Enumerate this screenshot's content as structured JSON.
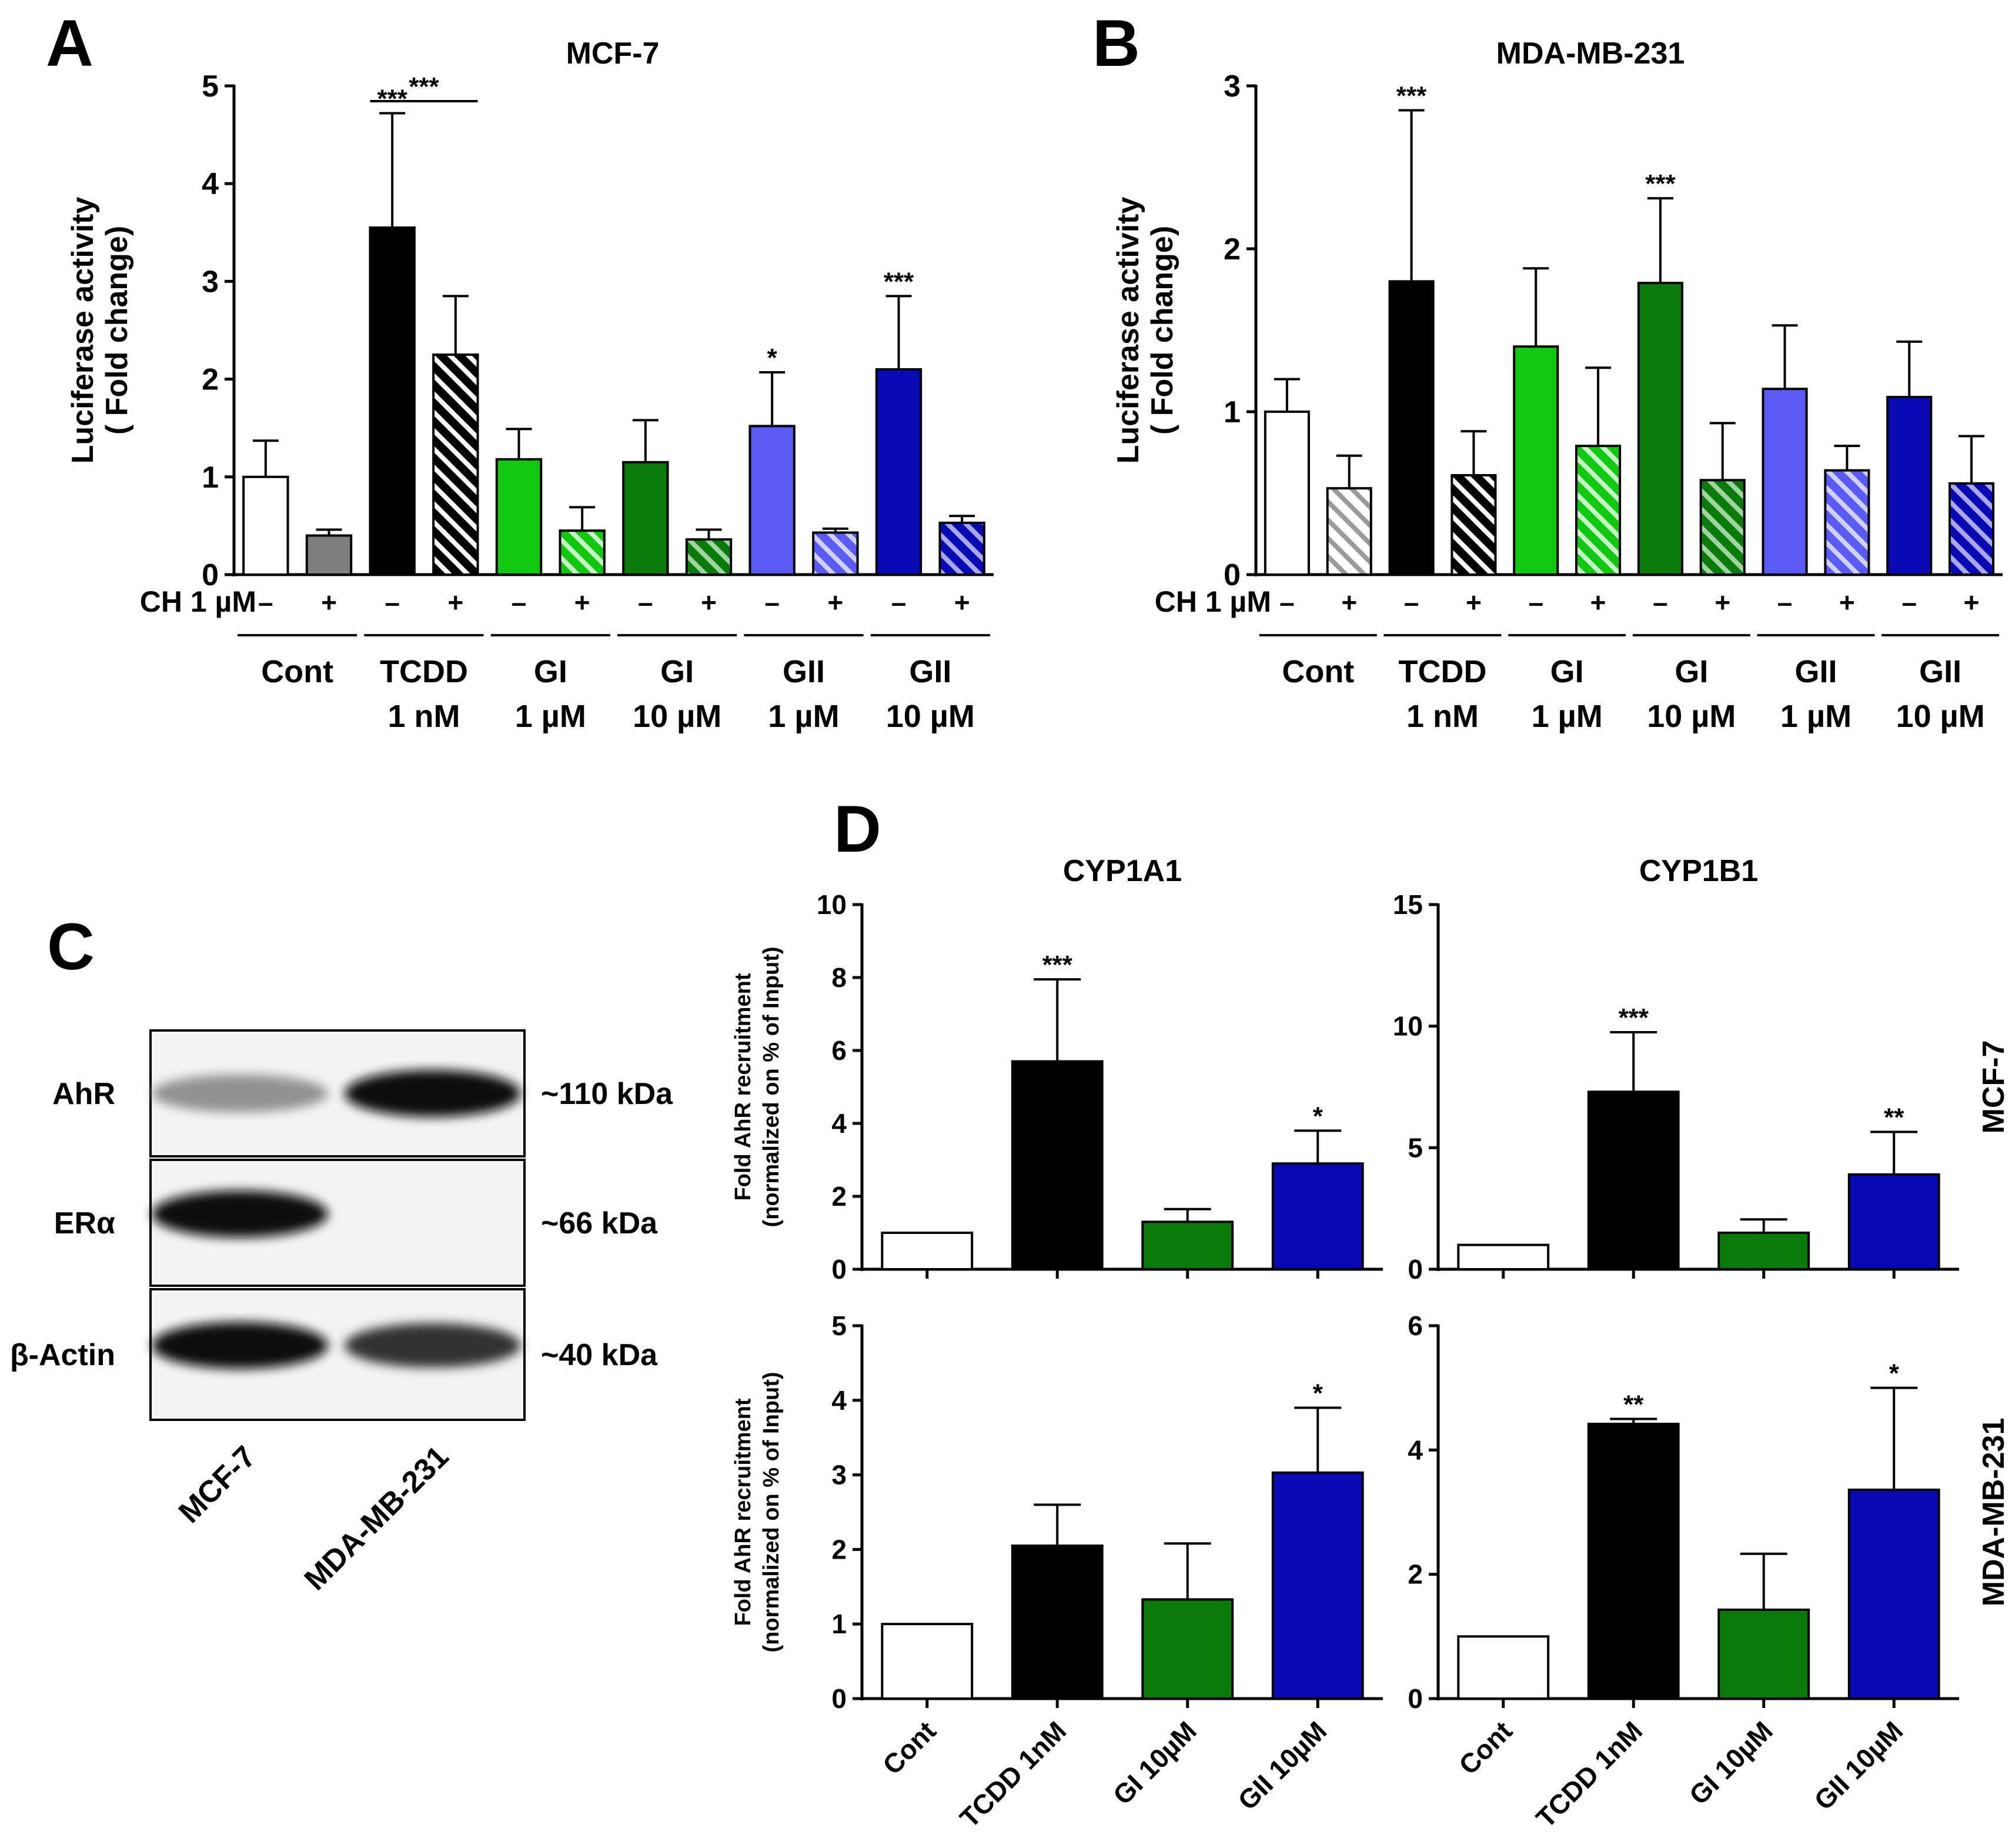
{
  "colors": {
    "white": "#ffffff",
    "gray": "#7f7f7f",
    "black": "#000000",
    "light_green": "#11c811",
    "dark_green": "#0a7a0a",
    "light_blue": "#5a5af5",
    "dark_blue": "#0a0ab4",
    "axis": "#000000"
  },
  "panels": {
    "A": {
      "letter": "A"
    },
    "B": {
      "letter": "B"
    },
    "C": {
      "letter": "C"
    },
    "D": {
      "letter": "D"
    }
  },
  "shared": {
    "reporter_ylabel_line1": "Luciferase activity",
    "reporter_ylabel_line2": "( Fold change)",
    "ch_label": "CH 1 µM",
    "minus": "–",
    "plus": "+",
    "chip_ylabel_line1": "Fold AhR recruitment",
    "chip_ylabel_line2": "(normalized on % of Input)"
  },
  "chart_data": [
    {
      "id": "A",
      "type": "bar",
      "title": "MCF-7",
      "ylabel": "Luciferase activity ( Fold change)",
      "ylim": [
        0,
        5
      ],
      "yticks": [
        "0",
        "1",
        "2",
        "3",
        "4",
        "5"
      ],
      "groups": [
        {
          "line1": "Cont",
          "line2": ""
        },
        {
          "line1": "TCDD",
          "line2": "1 nM"
        },
        {
          "line1": "GI",
          "line2": "1 µM"
        },
        {
          "line1": "GI",
          "line2": "10 µM"
        },
        {
          "line1": "GII",
          "line2": "1 µM"
        },
        {
          "line1": "GII",
          "line2": "10 µM"
        }
      ],
      "treatment": "CH 1 µM",
      "values": [
        1.0,
        0.4,
        3.55,
        2.25,
        1.18,
        0.45,
        1.15,
        0.36,
        1.52,
        0.43,
        2.1,
        0.53
      ],
      "errors": [
        0.37,
        0.06,
        1.17,
        0.6,
        0.31,
        0.24,
        0.43,
        0.1,
        0.55,
        0.04,
        0.75,
        0.07
      ],
      "ch_treated": [
        false,
        true,
        false,
        true,
        false,
        true,
        false,
        true,
        false,
        true,
        false,
        true
      ],
      "bar_colors": [
        "#ffffff",
        "#7f7f7f",
        "#000000",
        "#000000",
        "#11c811",
        "#11c811",
        "#0a7a0a",
        "#0a7a0a",
        "#5a5af5",
        "#5a5af5",
        "#0a0ab4",
        "#0a0ab4"
      ],
      "stars": [
        "",
        "",
        "***",
        "",
        "",
        "",
        "",
        "",
        "*",
        "",
        "***",
        ""
      ],
      "bracket_label": "***"
    },
    {
      "id": "B",
      "type": "bar",
      "title": "MDA-MB-231",
      "ylabel": "Luciferase activity ( Fold change)",
      "ylim": [
        0,
        3
      ],
      "yticks": [
        "0",
        "1",
        "2",
        "3"
      ],
      "groups": [
        {
          "line1": "Cont",
          "line2": ""
        },
        {
          "line1": "TCDD",
          "line2": "1 nM"
        },
        {
          "line1": "GI",
          "line2": "1 µM"
        },
        {
          "line1": "GI",
          "line2": "10 µM"
        },
        {
          "line1": "GII",
          "line2": "1 µM"
        },
        {
          "line1": "GII",
          "line2": "10 µM"
        }
      ],
      "treatment": "CH 1 µM",
      "values": [
        1.0,
        0.53,
        1.8,
        0.61,
        1.4,
        0.79,
        1.79,
        0.58,
        1.14,
        0.64,
        1.09,
        0.56
      ],
      "errors": [
        0.2,
        0.2,
        1.05,
        0.27,
        0.48,
        0.48,
        0.52,
        0.35,
        0.39,
        0.15,
        0.34,
        0.29
      ],
      "ch_treated": [
        false,
        true,
        false,
        true,
        false,
        true,
        false,
        true,
        false,
        true,
        false,
        true
      ],
      "bar_colors": [
        "#ffffff",
        "#ffffff",
        "#000000",
        "#000000",
        "#11c811",
        "#11c811",
        "#0a7a0a",
        "#0a7a0a",
        "#5a5af5",
        "#5a5af5",
        "#0a0ab4",
        "#0a0ab4"
      ],
      "stars": [
        "",
        "",
        "***",
        "",
        "",
        "",
        "***",
        "",
        "",
        "",
        "",
        ""
      ]
    },
    {
      "id": "D1",
      "type": "bar",
      "title": "CYP1A1",
      "cell_line": "MCF-7",
      "ylabel": "Fold AhR recruitment (normalized on % of Input)",
      "ylim": [
        0,
        10
      ],
      "yticks": [
        "0",
        "2",
        "4",
        "6",
        "8",
        "10"
      ],
      "categories": [
        "Cont",
        "TCDD 1nM",
        "GI 10µM",
        "GII 10µM"
      ],
      "values": [
        1.0,
        5.7,
        1.3,
        2.9
      ],
      "errors": [
        0,
        2.25,
        0.35,
        0.9
      ],
      "bar_colors": [
        "#ffffff",
        "#000000",
        "#0a7a0a",
        "#0a0ab4"
      ],
      "stars": [
        "",
        "***",
        "",
        "*"
      ]
    },
    {
      "id": "D2",
      "type": "bar",
      "title": "CYP1B1",
      "cell_line": "MCF-7",
      "ylabel": "",
      "ylim": [
        0,
        15
      ],
      "yticks": [
        "0",
        "5",
        "10",
        "15"
      ],
      "categories": [
        "Cont",
        "TCDD 1nM",
        "GI 10µM",
        "GII 10µM"
      ],
      "values": [
        1.0,
        7.3,
        1.5,
        3.9
      ],
      "errors": [
        0,
        2.45,
        0.55,
        1.75
      ],
      "bar_colors": [
        "#ffffff",
        "#000000",
        "#0a7a0a",
        "#0a0ab4"
      ],
      "stars": [
        "",
        "***",
        "",
        "**"
      ]
    },
    {
      "id": "D3",
      "type": "bar",
      "title": "",
      "cell_line": "MDA-MB-231",
      "ylabel": "Fold AhR recruitment (normalized on % of Input)",
      "ylim": [
        0,
        5
      ],
      "yticks": [
        "0",
        "1",
        "2",
        "3",
        "4",
        "5"
      ],
      "categories": [
        "Cont",
        "TCDD 1nM",
        "GI 10µM",
        "GII 10µM"
      ],
      "values": [
        1.0,
        2.05,
        1.33,
        3.03
      ],
      "errors": [
        0,
        0.55,
        0.75,
        0.87
      ],
      "bar_colors": [
        "#ffffff",
        "#000000",
        "#0a7a0a",
        "#0a0ab4"
      ],
      "stars": [
        "",
        "",
        "",
        "*"
      ]
    },
    {
      "id": "D4",
      "type": "bar",
      "title": "",
      "cell_line": "MDA-MB-231",
      "ylabel": "",
      "ylim": [
        0,
        6
      ],
      "yticks": [
        "0",
        "2",
        "4",
        "6"
      ],
      "categories": [
        "Cont",
        "TCDD 1nM",
        "GI 10µM",
        "GII 10µM"
      ],
      "values": [
        1.0,
        4.42,
        1.43,
        3.36
      ],
      "errors": [
        0,
        0.08,
        0.9,
        1.64
      ],
      "bar_colors": [
        "#ffffff",
        "#000000",
        "#0a7a0a",
        "#0a0ab4"
      ],
      "stars": [
        "",
        "**",
        "",
        "*"
      ]
    }
  ],
  "blot": {
    "rows": [
      {
        "protein": "AhR",
        "size": "~110 kDa",
        "intensity": [
          0.45,
          1.0
        ]
      },
      {
        "protein": "ERα",
        "size": "~66 kDa",
        "intensity": [
          1.0,
          0.0
        ]
      },
      {
        "protein": "β-Actin",
        "size": "~40 kDa",
        "intensity": [
          1.0,
          0.85
        ]
      }
    ],
    "lanes": [
      "MCF-7",
      "MDA-MB-231"
    ]
  }
}
